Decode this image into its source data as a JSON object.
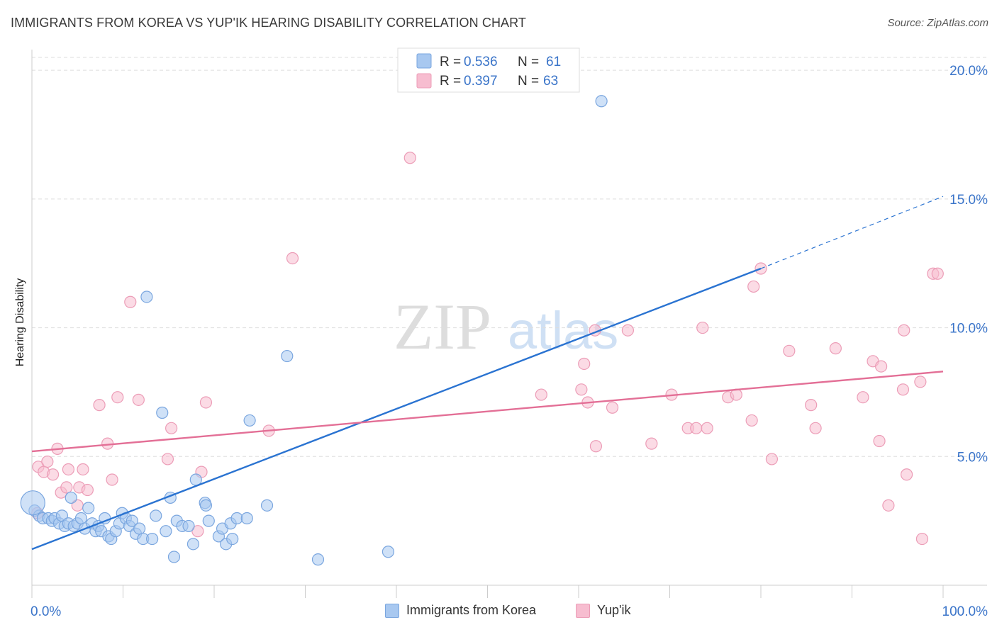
{
  "title": "IMMIGRANTS FROM KOREA VS YUP'IK HEARING DISABILITY CORRELATION CHART",
  "source": "Source: ZipAtlas.com",
  "watermark": {
    "zip": "ZIP",
    "atlas": "atlas"
  },
  "colors": {
    "blue_fill": "#a8c8f0",
    "blue_stroke": "#7aa6df",
    "blue_line": "#2a73d1",
    "pink_fill": "#f7bdd0",
    "pink_stroke": "#ec9db7",
    "pink_line": "#e36f96",
    "value_text": "#3a74c9",
    "grid": "#dddddd"
  },
  "legend_top": [
    {
      "r_label": "R =",
      "r_value": "0.536",
      "n_label": "N =",
      "n_value": "61",
      "series": "blue"
    },
    {
      "r_label": "R =",
      "r_value": "0.397",
      "n_label": "N =",
      "n_value": "63",
      "series": "pink"
    }
  ],
  "chart_data": {
    "type": "scatter",
    "title": "IMMIGRANTS FROM KOREA VS YUP'IK HEARING DISABILITY CORRELATION CHART",
    "xlabel": "",
    "ylabel": "Hearing Disability",
    "xlim": [
      0,
      100
    ],
    "ylim": [
      0,
      20.5
    ],
    "x_tick_labels": [
      "0.0%",
      "100.0%"
    ],
    "y_ticks": [
      5,
      10,
      15,
      20
    ],
    "y_tick_labels": [
      "5.0%",
      "10.0%",
      "15.0%",
      "20.0%"
    ],
    "series": [
      {
        "name": "Immigrants from Korea",
        "color": "blue",
        "R": 0.536,
        "N": 61,
        "trend": {
          "x0": 0,
          "y0": 1.4,
          "x1": 80,
          "y1": 12.3,
          "dash_x1": 100,
          "dash_y1": 15.1
        },
        "points": [
          [
            0.3,
            2.9
          ],
          [
            0.8,
            2.7
          ],
          [
            1.2,
            2.6
          ],
          [
            1.8,
            2.6
          ],
          [
            2.2,
            2.5
          ],
          [
            2.5,
            2.6
          ],
          [
            3.0,
            2.4
          ],
          [
            3.3,
            2.7
          ],
          [
            3.6,
            2.3
          ],
          [
            4.0,
            2.4
          ],
          [
            4.3,
            3.4
          ],
          [
            4.6,
            2.3
          ],
          [
            5.0,
            2.4
          ],
          [
            5.4,
            2.6
          ],
          [
            5.8,
            2.2
          ],
          [
            6.2,
            3.0
          ],
          [
            6.6,
            2.4
          ],
          [
            7.0,
            2.1
          ],
          [
            7.3,
            2.3
          ],
          [
            7.6,
            2.1
          ],
          [
            8.0,
            2.6
          ],
          [
            8.4,
            1.9
          ],
          [
            8.7,
            1.8
          ],
          [
            9.2,
            2.1
          ],
          [
            9.6,
            2.4
          ],
          [
            9.9,
            2.8
          ],
          [
            10.3,
            2.6
          ],
          [
            10.7,
            2.3
          ],
          [
            11.0,
            2.5
          ],
          [
            11.4,
            2.0
          ],
          [
            11.8,
            2.2
          ],
          [
            12.2,
            1.8
          ],
          [
            12.6,
            11.2
          ],
          [
            13.2,
            1.8
          ],
          [
            13.6,
            2.7
          ],
          [
            14.3,
            6.7
          ],
          [
            14.7,
            2.1
          ],
          [
            15.2,
            3.4
          ],
          [
            15.6,
            1.1
          ],
          [
            15.9,
            2.5
          ],
          [
            16.5,
            2.3
          ],
          [
            17.2,
            2.3
          ],
          [
            17.7,
            1.6
          ],
          [
            18.0,
            4.1
          ],
          [
            19.0,
            3.2
          ],
          [
            19.1,
            3.1
          ],
          [
            19.4,
            2.5
          ],
          [
            20.5,
            1.9
          ],
          [
            20.9,
            2.2
          ],
          [
            21.3,
            1.6
          ],
          [
            21.8,
            2.4
          ],
          [
            22.0,
            1.8
          ],
          [
            22.5,
            2.6
          ],
          [
            23.6,
            2.6
          ],
          [
            23.9,
            6.4
          ],
          [
            25.8,
            3.1
          ],
          [
            28.0,
            8.9
          ],
          [
            31.4,
            1.0
          ],
          [
            39.1,
            1.3
          ],
          [
            62.5,
            18.8
          ],
          [
            0.1,
            3.2
          ]
        ]
      },
      {
        "name": "Yup'ik",
        "color": "pink",
        "R": 0.397,
        "N": 63,
        "trend": {
          "x0": 0,
          "y0": 5.2,
          "x1": 100,
          "y1": 8.3
        },
        "points": [
          [
            0.6,
            2.8
          ],
          [
            0.7,
            4.6
          ],
          [
            1.3,
            4.4
          ],
          [
            1.7,
            4.8
          ],
          [
            2.3,
            4.3
          ],
          [
            2.8,
            5.3
          ],
          [
            3.2,
            3.6
          ],
          [
            3.8,
            3.8
          ],
          [
            4.0,
            4.5
          ],
          [
            5.0,
            3.1
          ],
          [
            5.2,
            3.8
          ],
          [
            5.6,
            4.5
          ],
          [
            6.1,
            3.7
          ],
          [
            7.4,
            7.0
          ],
          [
            8.3,
            5.5
          ],
          [
            8.8,
            4.1
          ],
          [
            9.4,
            7.3
          ],
          [
            10.8,
            11.0
          ],
          [
            11.7,
            7.2
          ],
          [
            14.9,
            4.9
          ],
          [
            15.3,
            6.1
          ],
          [
            18.2,
            2.1
          ],
          [
            18.6,
            4.4
          ],
          [
            19.1,
            7.1
          ],
          [
            26.0,
            6.0
          ],
          [
            28.6,
            12.7
          ],
          [
            41.5,
            16.6
          ],
          [
            55.9,
            7.4
          ],
          [
            60.3,
            7.6
          ],
          [
            60.6,
            8.6
          ],
          [
            61.0,
            7.1
          ],
          [
            61.8,
            9.9
          ],
          [
            61.9,
            5.4
          ],
          [
            63.7,
            6.9
          ],
          [
            65.4,
            9.9
          ],
          [
            68.0,
            5.5
          ],
          [
            70.2,
            7.4
          ],
          [
            72.0,
            6.1
          ],
          [
            72.9,
            6.1
          ],
          [
            73.6,
            10.0
          ],
          [
            74.1,
            6.1
          ],
          [
            76.4,
            7.3
          ],
          [
            77.3,
            7.4
          ],
          [
            79.0,
            6.4
          ],
          [
            79.2,
            11.6
          ],
          [
            80.0,
            12.3
          ],
          [
            81.2,
            4.9
          ],
          [
            83.1,
            9.1
          ],
          [
            85.5,
            7.0
          ],
          [
            86.0,
            6.1
          ],
          [
            88.2,
            9.2
          ],
          [
            91.2,
            7.3
          ],
          [
            92.3,
            8.7
          ],
          [
            93.0,
            5.6
          ],
          [
            93.2,
            8.5
          ],
          [
            94.0,
            3.1
          ],
          [
            95.6,
            7.6
          ],
          [
            95.7,
            9.9
          ],
          [
            96.0,
            4.3
          ],
          [
            97.5,
            7.9
          ],
          [
            97.7,
            1.8
          ],
          [
            98.9,
            12.1
          ],
          [
            99.4,
            12.1
          ]
        ]
      }
    ]
  },
  "legend_bottom": [
    {
      "label": "Immigrants from Korea",
      "series": "blue"
    },
    {
      "label": "Yup'ik",
      "series": "pink"
    }
  ]
}
